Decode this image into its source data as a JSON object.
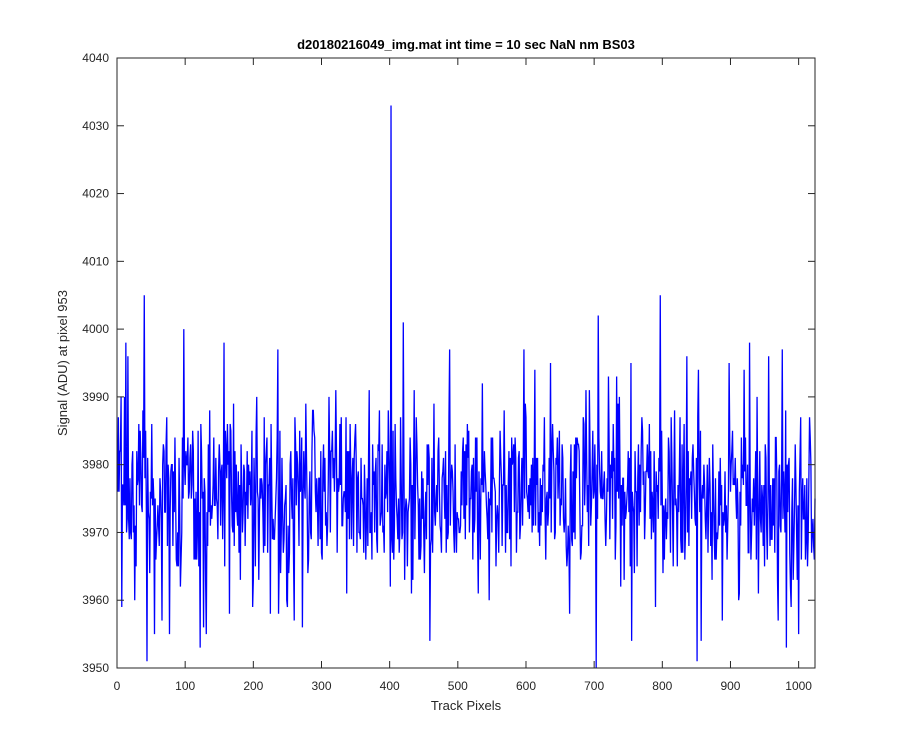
{
  "chart_data": {
    "type": "line",
    "title": "d20180216049_img.mat int time = 10 sec  NaN nm BS03",
    "xlabel": "Track Pixels",
    "ylabel": "Signal (ADU) at pixel 953",
    "xlim": [
      0,
      1024
    ],
    "ylim": [
      3950,
      4040
    ],
    "x_ticks": [
      "0",
      "100",
      "200",
      "300",
      "400",
      "500",
      "600",
      "700",
      "800",
      "900",
      "1000"
    ],
    "y_ticks": [
      "3950",
      "3960",
      "3970",
      "3980",
      "3990",
      "4000",
      "4010",
      "4020",
      "4030",
      "4040"
    ],
    "grid": false,
    "legend": "none",
    "series": [
      {
        "color": "#0000ff",
        "noise": {
          "count": 1024,
          "mean": 3975.5,
          "std": 7,
          "min": 3950,
          "max": 4006
        },
        "peaks": [
          {
            "x": 7,
            "y": 3959
          },
          {
            "x": 11,
            "y": 3990
          },
          {
            "x": 13,
            "y": 3998
          },
          {
            "x": 40,
            "y": 4005
          },
          {
            "x": 44,
            "y": 3951
          },
          {
            "x": 55,
            "y": 3955
          },
          {
            "x": 66,
            "y": 3957
          },
          {
            "x": 77,
            "y": 3955
          },
          {
            "x": 98,
            "y": 4000
          },
          {
            "x": 122,
            "y": 3953
          },
          {
            "x": 127,
            "y": 3956
          },
          {
            "x": 157,
            "y": 3998
          },
          {
            "x": 165,
            "y": 3958
          },
          {
            "x": 225,
            "y": 3958
          },
          {
            "x": 236,
            "y": 3997
          },
          {
            "x": 260,
            "y": 3957
          },
          {
            "x": 272,
            "y": 3956
          },
          {
            "x": 402,
            "y": 4033
          },
          {
            "x": 420,
            "y": 4001
          },
          {
            "x": 459,
            "y": 3954
          },
          {
            "x": 488,
            "y": 3997
          },
          {
            "x": 597,
            "y": 3997
          },
          {
            "x": 636,
            "y": 3995
          },
          {
            "x": 703,
            "y": 3950
          },
          {
            "x": 706,
            "y": 4002
          },
          {
            "x": 755,
            "y": 3954
          },
          {
            "x": 797,
            "y": 4005
          },
          {
            "x": 851,
            "y": 3951
          },
          {
            "x": 898,
            "y": 3995
          },
          {
            "x": 920,
            "y": 3994
          },
          {
            "x": 956,
            "y": 3996
          },
          {
            "x": 970,
            "y": 3957
          },
          {
            "x": 976,
            "y": 3997
          },
          {
            "x": 982,
            "y": 3953
          },
          {
            "x": 1000,
            "y": 3955
          },
          {
            "x": 1003,
            "y": 3987
          }
        ]
      }
    ]
  }
}
